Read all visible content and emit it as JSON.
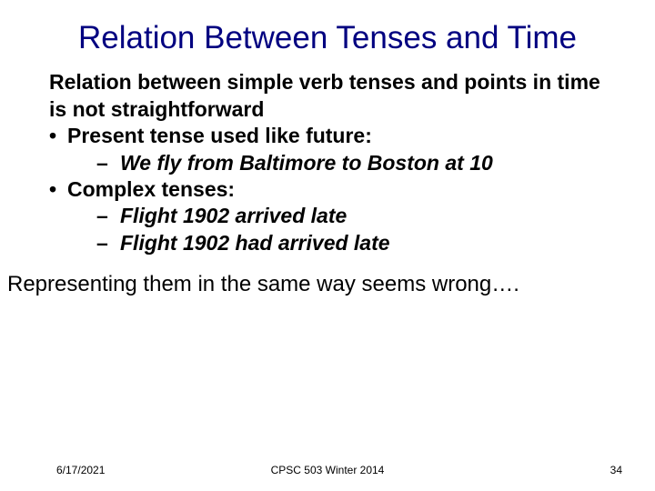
{
  "title": "Relation Between Tenses and Time",
  "lead": "Relation between simple verb tenses and points in time is not straightforward",
  "bullet1": "Present tense used like future:",
  "bullet1_sub1": "We fly from Baltimore to Boston at 10",
  "bullet2": "Complex tenses:",
  "bullet2_sub1": "Flight 1902 arrived late",
  "bullet2_sub2": "Flight 1902 had arrived late",
  "callout": "Representing them in the same way seems wrong….",
  "footer": {
    "date": "6/17/2021",
    "course": "CPSC 503 Winter 2014",
    "page": "34"
  },
  "colors": {
    "title_color": "#000080",
    "body_color": "#000000",
    "background": "#ffffff"
  },
  "typography": {
    "font_family": "Comic Sans MS",
    "title_fontsize": 35,
    "body_fontsize": 23,
    "callout_fontsize": 24,
    "footer_fontsize": 12,
    "body_weight": "bold"
  }
}
